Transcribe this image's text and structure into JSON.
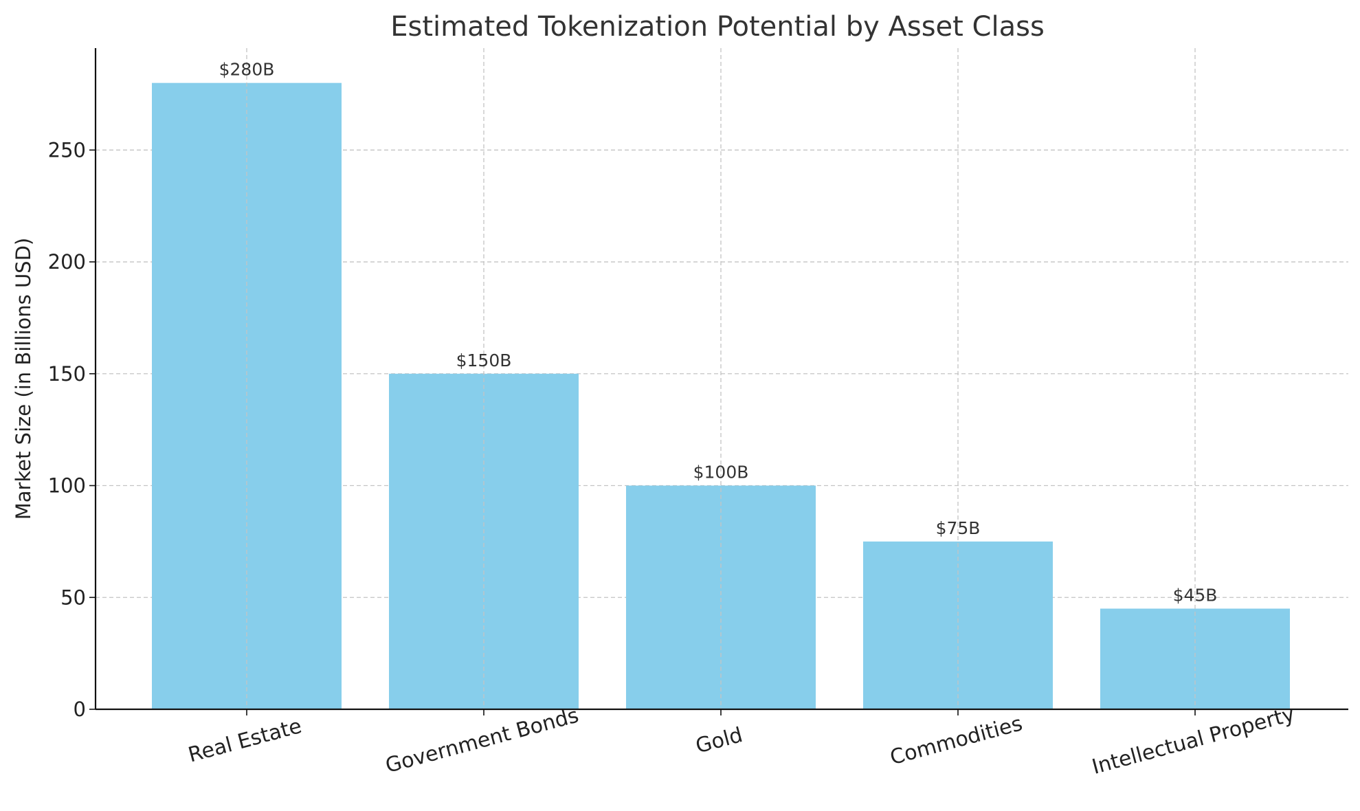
{
  "chart_data": {
    "type": "bar",
    "title": "Estimated Tokenization Potential by Asset Class",
    "xlabel": "",
    "ylabel": "Market Size (in Billions USD)",
    "categories": [
      "Real Estate",
      "Government Bonds",
      "Gold",
      "Commodities",
      "Intellectual Property"
    ],
    "values": [
      280,
      150,
      100,
      75,
      45
    ],
    "data_labels": [
      "$280B",
      "$150B",
      "$100B",
      "$75B",
      "$45B"
    ],
    "ylim": [
      0,
      294
    ],
    "yticks": [
      0,
      50,
      100,
      150,
      200,
      250
    ],
    "grid": true,
    "bar_color": "#87CEEB",
    "x_tick_rotation_deg": 15
  }
}
